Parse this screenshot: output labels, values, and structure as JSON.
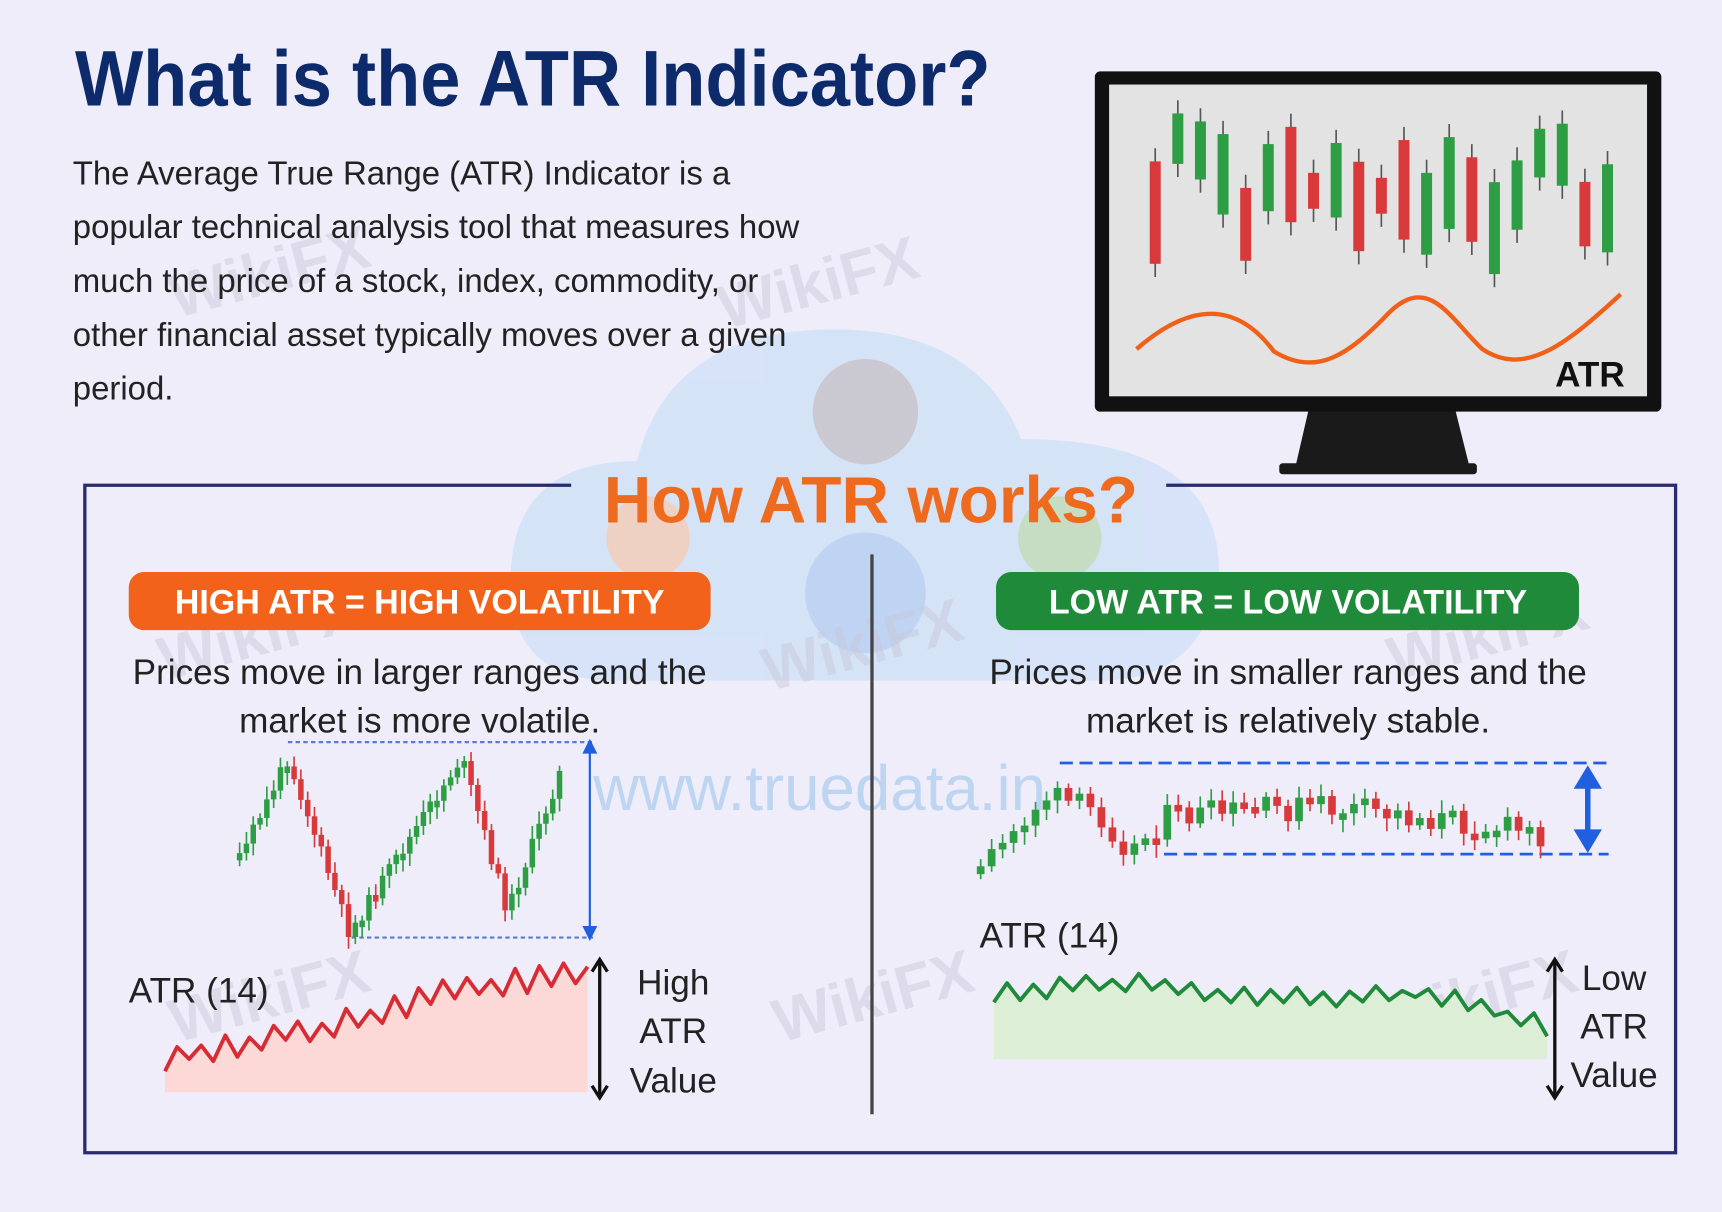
{
  "title": "What is the ATR Indicator?",
  "description": [
    "The Average True Range (ATR) Indicator is a",
    "popular technical analysis tool that measures how",
    "much the price of a stock, index, commodity, or",
    "other financial asset typically moves over a given",
    "period."
  ],
  "monitor_label": "ATR",
  "section_title": "How ATR works?",
  "high": {
    "badge": "HIGH ATR = HIGH VOLATILITY",
    "text": [
      "Prices move in larger ranges and the",
      "market is more volatile."
    ],
    "atr_label": "ATR (14)",
    "side_label": [
      "High",
      "ATR",
      "Value"
    ]
  },
  "low": {
    "badge": "LOW ATR = LOW VOLATILITY",
    "text": [
      "Prices move in smaller ranges and the",
      "market is relatively stable."
    ],
    "atr_label": "ATR (14)",
    "side_label": [
      "Low",
      "ATR",
      "Value"
    ]
  },
  "watermarks": [
    "WikiFX",
    "www.truedata.in"
  ]
}
